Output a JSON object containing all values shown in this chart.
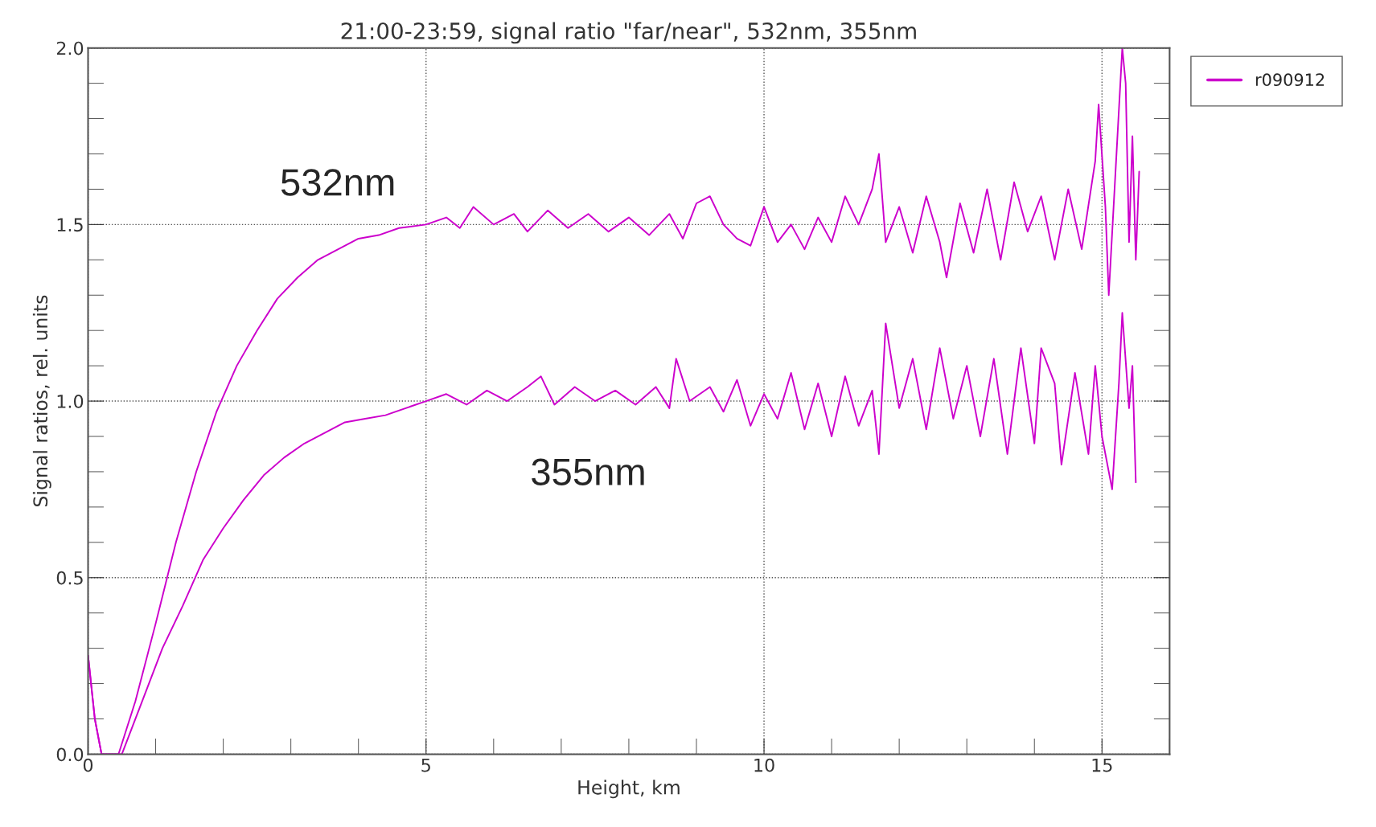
{
  "chart_data": {
    "type": "line",
    "title": "21:00-23:59, signal ratio \"far/near\", 532nm, 355nm",
    "xlabel": "Height, km",
    "ylabel": "Signal ratios, rel. units",
    "series": [
      {
        "name": "r090912",
        "color": "#cc00cc",
        "x": [
          0,
          0.1,
          0.2,
          0.3,
          0.45,
          0.7,
          1.0,
          1.3,
          1.6,
          1.9,
          2.2,
          2.5,
          2.8,
          3.1,
          3.4,
          3.7,
          4.0,
          4.3,
          4.6,
          5.0,
          5.3,
          5.5,
          5.7,
          6.0,
          6.3,
          6.5,
          6.8,
          7.1,
          7.4,
          7.7,
          8.0,
          8.3,
          8.6,
          8.8,
          9.0,
          9.2,
          9.4,
          9.6,
          9.8,
          10.0,
          10.2,
          10.4,
          10.6,
          10.8,
          11.0,
          11.2,
          11.4,
          11.6,
          11.7,
          11.8,
          12.0,
          12.2,
          12.4,
          12.6,
          12.7,
          12.9,
          13.1,
          13.3,
          13.5,
          13.7,
          13.9,
          14.1,
          14.3,
          14.5,
          14.7,
          14.9,
          14.95,
          15.05,
          15.1,
          15.2,
          15.3,
          15.35,
          15.4,
          15.45,
          15.5,
          15.55
        ],
        "values": [
          0.28,
          0.1,
          0.0,
          0.0,
          0.0,
          0.15,
          0.37,
          0.6,
          0.8,
          0.97,
          1.1,
          1.2,
          1.29,
          1.35,
          1.4,
          1.43,
          1.46,
          1.47,
          1.49,
          1.5,
          1.52,
          1.49,
          1.55,
          1.5,
          1.53,
          1.48,
          1.54,
          1.49,
          1.53,
          1.48,
          1.52,
          1.47,
          1.53,
          1.46,
          1.56,
          1.58,
          1.5,
          1.46,
          1.44,
          1.55,
          1.45,
          1.5,
          1.43,
          1.52,
          1.45,
          1.58,
          1.5,
          1.6,
          1.7,
          1.45,
          1.55,
          1.42,
          1.58,
          1.45,
          1.35,
          1.56,
          1.42,
          1.6,
          1.4,
          1.62,
          1.48,
          1.58,
          1.4,
          1.6,
          1.43,
          1.68,
          1.84,
          1.55,
          1.3,
          1.65,
          2.0,
          1.9,
          1.45,
          1.75,
          1.4,
          1.65
        ]
      },
      {
        "color": "#cc00cc",
        "x": [
          0,
          0.1,
          0.2,
          0.5,
          0.8,
          1.1,
          1.4,
          1.7,
          2.0,
          2.3,
          2.6,
          2.9,
          3.2,
          3.5,
          3.8,
          4.1,
          4.4,
          4.7,
          5.0,
          5.3,
          5.6,
          5.9,
          6.2,
          6.5,
          6.7,
          6.9,
          7.2,
          7.5,
          7.8,
          8.1,
          8.4,
          8.6,
          8.7,
          8.9,
          9.2,
          9.4,
          9.6,
          9.8,
          10.0,
          10.2,
          10.4,
          10.6,
          10.8,
          11.0,
          11.2,
          11.4,
          11.6,
          11.7,
          11.8,
          12.0,
          12.2,
          12.4,
          12.6,
          12.8,
          13.0,
          13.2,
          13.4,
          13.6,
          13.8,
          14.0,
          14.1,
          14.3,
          14.4,
          14.6,
          14.8,
          14.9,
          15.0,
          15.1,
          15.15,
          15.25,
          15.3,
          15.4,
          15.45,
          15.5
        ],
        "values": [
          0.28,
          0.1,
          0.0,
          0.0,
          0.15,
          0.3,
          0.42,
          0.55,
          0.64,
          0.72,
          0.79,
          0.84,
          0.88,
          0.91,
          0.94,
          0.95,
          0.96,
          0.98,
          1.0,
          1.02,
          0.99,
          1.03,
          1.0,
          1.04,
          1.07,
          0.99,
          1.04,
          1.0,
          1.03,
          0.99,
          1.04,
          0.98,
          1.12,
          1.0,
          1.04,
          0.97,
          1.06,
          0.93,
          1.02,
          0.95,
          1.08,
          0.92,
          1.05,
          0.9,
          1.07,
          0.93,
          1.03,
          0.85,
          1.22,
          0.98,
          1.12,
          0.92,
          1.15,
          0.95,
          1.1,
          0.9,
          1.12,
          0.85,
          1.15,
          0.88,
          1.15,
          1.05,
          0.82,
          1.08,
          0.85,
          1.1,
          0.9,
          0.8,
          0.75,
          1.05,
          1.25,
          0.98,
          1.1,
          0.77
        ]
      }
    ],
    "annotations": [
      "532nm",
      "355nm"
    ],
    "xlim": [
      0,
      16
    ],
    "xticks": [
      0,
      5,
      10,
      15
    ],
    "ylim": [
      0,
      2.0
    ],
    "yticks": [
      {
        "value": 0,
        "label": "0.0"
      },
      {
        "value": 0.5,
        "label": "0.5"
      },
      {
        "value": 1.0,
        "label": "1.0"
      },
      {
        "value": 1.5,
        "label": "1.5"
      },
      {
        "value": 2.0,
        "label": "2.0"
      }
    ],
    "grid": true,
    "legend": "right",
    "line_style": "solid",
    "marker": "none"
  }
}
